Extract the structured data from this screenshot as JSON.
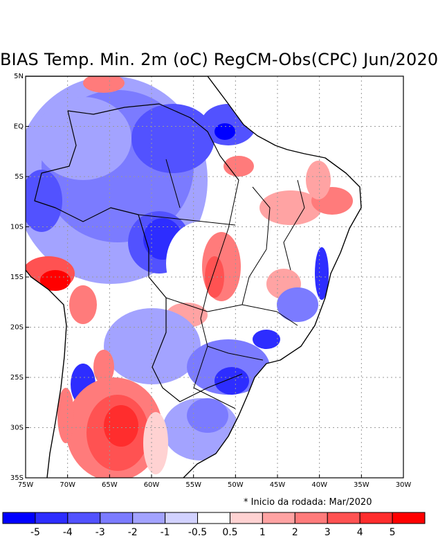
{
  "title": "BIAS Temp. Min. 2m (oC) RegCM-Obs(CPC) Jun/2020",
  "note": "* Inicio da rodada: Mar/2020",
  "map": {
    "lon_range": [
      -75,
      -30
    ],
    "lat_range": [
      -35,
      5
    ],
    "lon_ticks": [
      {
        "value": -75,
        "label": "75W"
      },
      {
        "value": -70,
        "label": "70W"
      },
      {
        "value": -65,
        "label": "65W"
      },
      {
        "value": -60,
        "label": "60W"
      },
      {
        "value": -55,
        "label": "55W"
      },
      {
        "value": -50,
        "label": "50W"
      },
      {
        "value": -45,
        "label": "45W"
      },
      {
        "value": -40,
        "label": "40W"
      },
      {
        "value": -35,
        "label": "35W"
      },
      {
        "value": -30,
        "label": "30W"
      }
    ],
    "lat_ticks": [
      {
        "value": 5,
        "label": "5N"
      },
      {
        "value": 0,
        "label": "EQ"
      },
      {
        "value": -5,
        "label": "5S"
      },
      {
        "value": -10,
        "label": "10S"
      },
      {
        "value": -15,
        "label": "15S"
      },
      {
        "value": -20,
        "label": "20S"
      },
      {
        "value": -25,
        "label": "25S"
      },
      {
        "value": -30,
        "label": "30S"
      },
      {
        "value": -35,
        "label": "35S"
      }
    ],
    "grid": "dotted"
  },
  "colorbar": {
    "colors": [
      "#0000ff",
      "#2d2dff",
      "#5252ff",
      "#7b7bff",
      "#a3a3ff",
      "#d2d2ff",
      "#ffffff",
      "#ffd2d2",
      "#ffa3a3",
      "#ff7b7b",
      "#ff5252",
      "#ff2d2d",
      "#ff0000"
    ],
    "labels": [
      "-5",
      "-4",
      "-3",
      "-2",
      "-1",
      "-0.5",
      "0.5",
      "1",
      "2",
      "3",
      "4",
      "5"
    ]
  }
}
